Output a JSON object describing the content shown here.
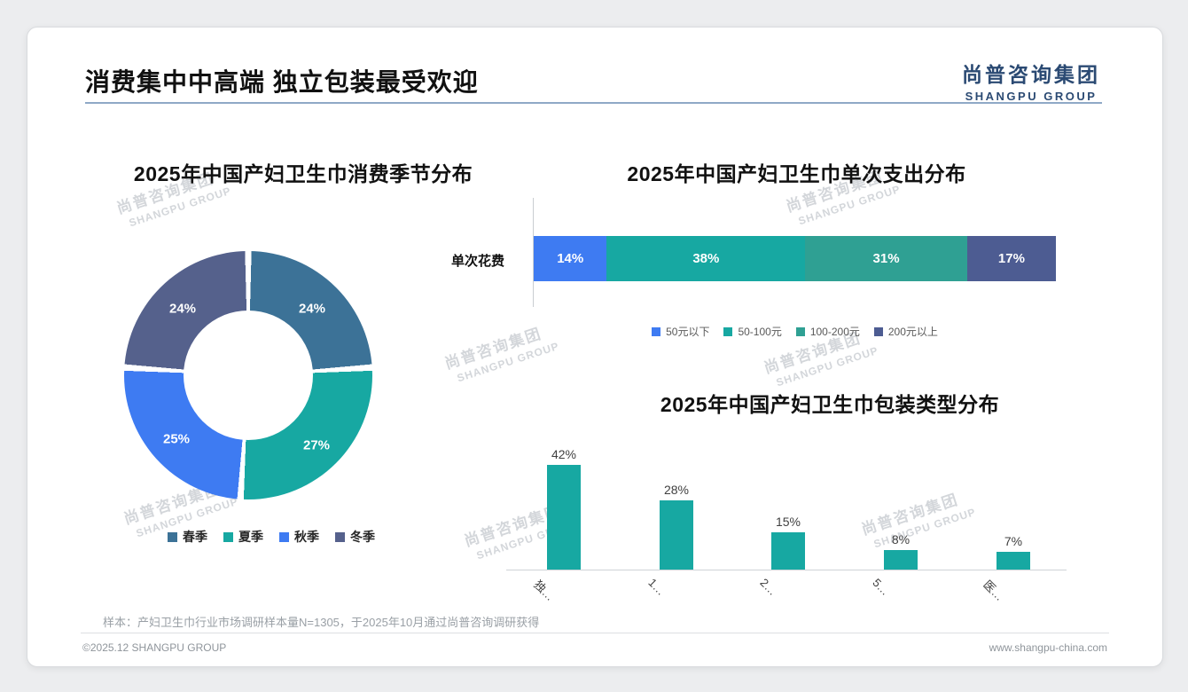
{
  "page": {
    "title": "消费集中中高端 独立包装最受欢迎",
    "logo_cn": "尚普咨询集团",
    "logo_en": "SHANGPU GROUP",
    "watermark_cn": "尚普咨询集团",
    "watermark_en": "SHANGPU GROUP",
    "sample_note": "样本：产妇卫生巾行业市场调研样本量N=1305，于2025年10月通过尚普咨询调研获得",
    "footer_left": "©2025.12 SHANGPU GROUP",
    "footer_right": "www.shangpu-china.com"
  },
  "chart_data": [
    {
      "type": "pie",
      "subtype": "donut",
      "title": "2025年中国产妇卫生巾消费季节分布",
      "categories": [
        "春季",
        "夏季",
        "秋季",
        "冬季"
      ],
      "values": [
        24,
        27,
        25,
        24
      ],
      "value_labels": [
        "24%",
        "27%",
        "25%",
        "24%"
      ],
      "colors": [
        "#3C7297",
        "#17A8A2",
        "#3E7BF2",
        "#55618C"
      ],
      "legend_position": "bottom"
    },
    {
      "type": "bar",
      "subtype": "horizontal-stacked",
      "title": "2025年中国产妇卫生巾单次支出分布",
      "axis_label": "单次花费",
      "categories": [
        "50元以下",
        "50-100元",
        "100-200元",
        "200元以上"
      ],
      "values": [
        14,
        38,
        31,
        17
      ],
      "value_labels": [
        "14%",
        "38%",
        "31%",
        "17%"
      ],
      "colors": [
        "#3E7BF2",
        "#17A8A2",
        "#2FA093",
        "#4D5C92"
      ],
      "legend_position": "bottom",
      "xlim": [
        0,
        100
      ]
    },
    {
      "type": "bar",
      "subtype": "vertical",
      "title": "2025年中国产妇卫生巾包装类型分布",
      "categories": [
        "独…",
        "1…",
        "2…",
        "5…",
        "医…"
      ],
      "values": [
        42,
        28,
        15,
        8,
        7
      ],
      "value_labels": [
        "42%",
        "28%",
        "15%",
        "8%",
        "7%"
      ],
      "bar_color": "#17A8A2",
      "ylim": [
        0,
        45
      ]
    }
  ]
}
